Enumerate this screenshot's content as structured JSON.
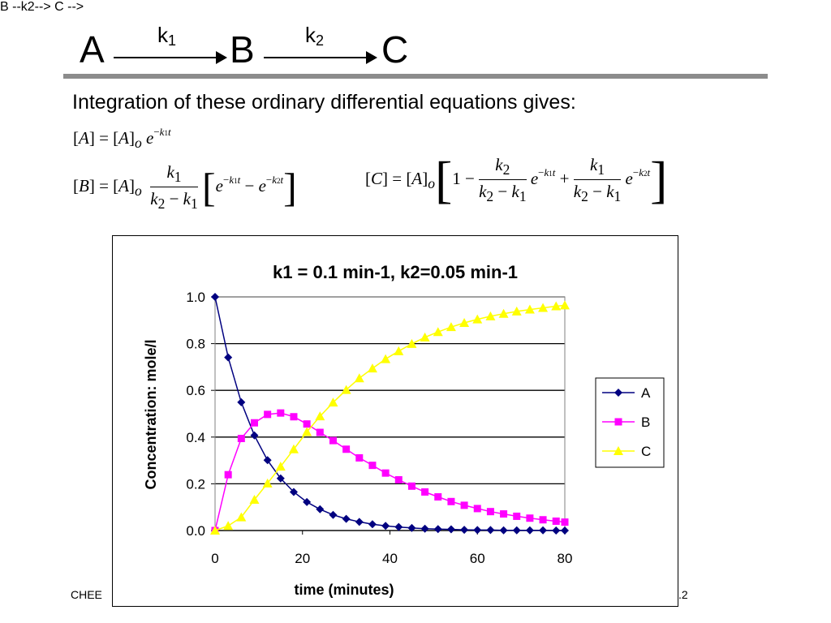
{
  "reaction": {
    "species_a": "A",
    "species_b": "B",
    "species_c": "C",
    "k1_base": "k",
    "k1_sub": "1",
    "k2_base": "k",
    "k2_sub": "2"
  },
  "intro_text": "Integration of these ordinary differential equations gives:",
  "equations": {
    "eq_a": "[A] = [A]o e^(−k1 t)",
    "eq_b": "[B] = [A]o k1/(k2 − k1) [e^(−k1 t) − e^(−k2 t)]",
    "eq_c": "[C] = [A]o [1 − k2/(k2 − k1) e^(−k1 t) + k1/(k2 − k1) e^(−k2 t)]"
  },
  "footer": {
    "left": "CHEE",
    "right": ".2"
  },
  "chart_data": {
    "type": "line",
    "title": "k1 = 0.1 min-1, k2=0.05 min-1",
    "xlabel": "time (minutes)",
    "ylabel": "Concentration: mole/l",
    "xlim": [
      0,
      80
    ],
    "ylim": [
      0,
      1
    ],
    "x_ticks": [
      "0",
      "20",
      "40",
      "60",
      "80"
    ],
    "y_ticks": [
      "0.0",
      "0.2",
      "0.4",
      "0.6",
      "0.8",
      "1.0"
    ],
    "grid": "horizontal",
    "legend_position": "right",
    "x": [
      0,
      3,
      6,
      9,
      12,
      15,
      18,
      21,
      24,
      27,
      30,
      33,
      36,
      39,
      42,
      45,
      48,
      51,
      54,
      57,
      60,
      63,
      66,
      69,
      72,
      75,
      78,
      80
    ],
    "series": [
      {
        "name": "A",
        "color": "#000080",
        "marker": "diamond",
        "values": [
          1.0,
          0.741,
          0.549,
          0.407,
          0.301,
          0.223,
          0.165,
          0.122,
          0.091,
          0.067,
          0.05,
          0.037,
          0.027,
          0.02,
          0.015,
          0.011,
          0.008,
          0.006,
          0.005,
          0.003,
          0.002,
          0.002,
          0.001,
          0.001,
          0.001,
          0.001,
          0.0,
          0.0
        ]
      },
      {
        "name": "B",
        "color": "#FF00FF",
        "marker": "square",
        "values": [
          0.0,
          0.239,
          0.394,
          0.461,
          0.497,
          0.503,
          0.487,
          0.456,
          0.42,
          0.385,
          0.348,
          0.311,
          0.279,
          0.246,
          0.217,
          0.19,
          0.165,
          0.144,
          0.124,
          0.108,
          0.094,
          0.081,
          0.071,
          0.061,
          0.053,
          0.046,
          0.04,
          0.036
        ]
      },
      {
        "name": "C",
        "color": "#FFFF00",
        "marker": "triangle",
        "values": [
          0.0,
          0.02,
          0.057,
          0.132,
          0.202,
          0.274,
          0.348,
          0.422,
          0.489,
          0.548,
          0.602,
          0.652,
          0.694,
          0.734,
          0.768,
          0.799,
          0.827,
          0.85,
          0.871,
          0.889,
          0.904,
          0.917,
          0.928,
          0.938,
          0.946,
          0.953,
          0.96,
          0.964
        ]
      }
    ]
  }
}
